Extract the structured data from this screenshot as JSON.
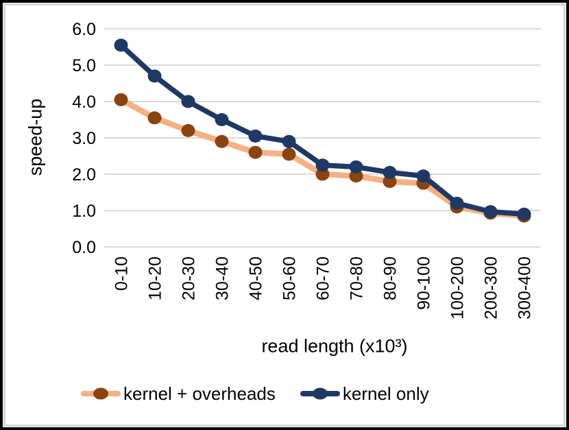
{
  "chart_data": {
    "type": "line",
    "categories": [
      "0-10",
      "10-20",
      "20-30",
      "30-40",
      "40-50",
      "50-60",
      "60-70",
      "70-80",
      "80-90",
      "90-100",
      "100-200",
      "200-300",
      "300-400"
    ],
    "series": [
      {
        "name": "kernel + overheads",
        "line_color": "#F4B183",
        "marker_color": "#8A4412",
        "line_width": 8.5,
        "marker_radius": 10,
        "values": [
          4.05,
          3.55,
          3.2,
          2.9,
          2.6,
          2.55,
          2.0,
          1.95,
          1.8,
          1.75,
          1.1,
          0.93,
          0.85
        ]
      },
      {
        "name": "kernel only",
        "line_color": "#1F3864",
        "marker_color": "#1F3864",
        "line_width": 7.5,
        "marker_radius": 10,
        "values": [
          5.55,
          4.7,
          4.0,
          3.5,
          3.05,
          2.9,
          2.25,
          2.2,
          2.05,
          1.95,
          1.2,
          0.97,
          0.9
        ]
      }
    ],
    "xlabel": "read length (x10³)",
    "ylabel": "speed-up",
    "ylim": [
      0,
      6
    ],
    "y_tick_labels": [
      "0.0",
      "1.0",
      "2.0",
      "3.0",
      "4.0",
      "5.0",
      "6.0"
    ],
    "grid": true,
    "legend_position": "bottom",
    "x_tick_rotation": -90
  },
  "colors": {
    "gridline": "#D9D9D9",
    "text": "#000000",
    "chart_border": "#D6D6D6",
    "outer_frame": "#000000",
    "background": "#FFFFFF"
  }
}
